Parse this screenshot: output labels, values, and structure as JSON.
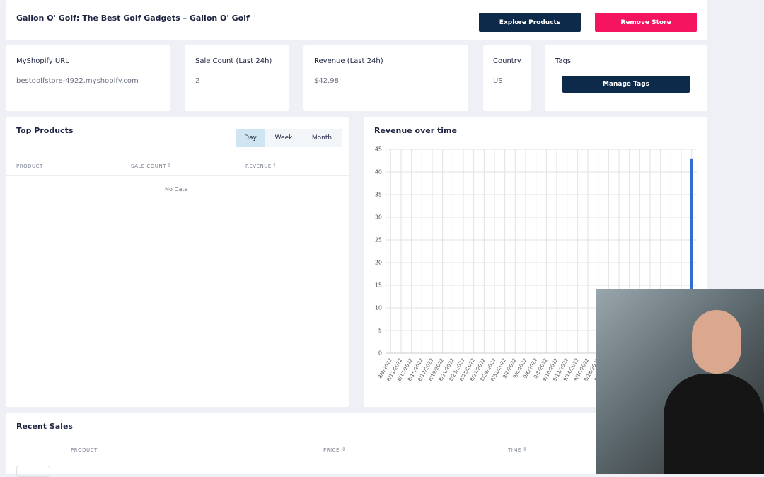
{
  "header": {
    "title": "Gallon O' Golf: The Best Golf Gadgets – Gallon O' Golf",
    "buttons": [
      "Explore Products",
      "Remove Store"
    ]
  },
  "stats": [
    {
      "label": "MyShopify URL",
      "value": "bestgolfstore-4922.myshopify.com"
    },
    {
      "label": "Sale Count (Last 24h)",
      "value": "2"
    },
    {
      "label": "Revenue (Last 24h)",
      "value": "$42.98"
    },
    {
      "label": "Country",
      "value": "US"
    }
  ],
  "tags": {
    "label": "Tags",
    "button": "Manage Tags"
  },
  "top_products": {
    "title": "Top Products",
    "tabs": [
      "Day",
      "Week",
      "Month"
    ],
    "columns": [
      "PRODUCT",
      "SALE COUNT",
      "REVENUE"
    ],
    "empty": "No Data"
  },
  "chart_data": {
    "type": "bar",
    "title": "Revenue over time",
    "categories": [
      "8/9/2022",
      "8/11/2022",
      "8/13/2022",
      "8/15/2022",
      "8/17/2022",
      "8/19/2022",
      "8/21/2022",
      "8/23/2022",
      "8/25/2022",
      "8/27/2022",
      "8/29/2022",
      "8/31/2022",
      "9/2/2022",
      "9/4/2022",
      "9/6/2022",
      "9/8/2022",
      "9/10/2022",
      "9/12/2022",
      "9/14/2022",
      "9/16/2022",
      "9/18/2022",
      "9/20/2022",
      null,
      null,
      null,
      null,
      null,
      null,
      null,
      null
    ],
    "values": [
      0,
      0,
      0,
      0,
      0,
      0,
      0,
      0,
      0,
      0,
      0,
      0,
      0,
      0,
      0,
      0,
      0,
      0,
      0,
      0,
      0,
      0,
      0,
      0,
      0,
      0,
      0,
      0,
      0,
      43
    ],
    "color": "#2f6fd6",
    "ylim": [
      0,
      45
    ],
    "yticks": [
      0,
      5,
      10,
      15,
      20,
      25,
      30,
      35,
      40,
      45
    ],
    "grid": true
  },
  "recent_sales": {
    "title": "Recent Sales",
    "columns": [
      "PRODUCT",
      "PRICE",
      "TIME"
    ]
  }
}
